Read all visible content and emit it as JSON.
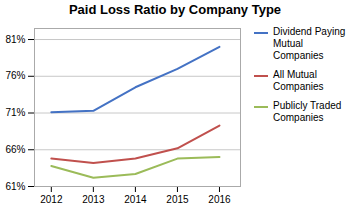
{
  "chart_data": {
    "type": "line",
    "title": "Paid Loss Ratio by Company Type",
    "x": [
      2012,
      2013,
      2014,
      2015,
      2016
    ],
    "series": [
      {
        "name": "Dividend Paying\nMutual\nCompanies",
        "color": "#4472C4",
        "values": [
          0.711,
          0.713,
          0.745,
          0.77,
          0.8
        ]
      },
      {
        "name": "All Mutual\nCompanies",
        "color": "#C0504D",
        "values": [
          0.648,
          0.642,
          0.648,
          0.662,
          0.693
        ]
      },
      {
        "name": "Publicly Traded\nCompanies",
        "color": "#9BBB59",
        "values": [
          0.638,
          0.622,
          0.627,
          0.648,
          0.65
        ]
      }
    ],
    "xlim": [
      2011.6,
      2016.5
    ],
    "xticks": [
      2012,
      2013,
      2014,
      2015,
      2016
    ],
    "ylim": [
      0.61,
      0.825
    ],
    "yticks": [
      {
        "value": 0.61,
        "label": "61%"
      },
      {
        "value": 0.66,
        "label": "66%"
      },
      {
        "value": 0.71,
        "label": "71%"
      },
      {
        "value": 0.76,
        "label": "76%"
      },
      {
        "value": 0.81,
        "label": "81%"
      }
    ],
    "grid": true,
    "legend": "right"
  }
}
